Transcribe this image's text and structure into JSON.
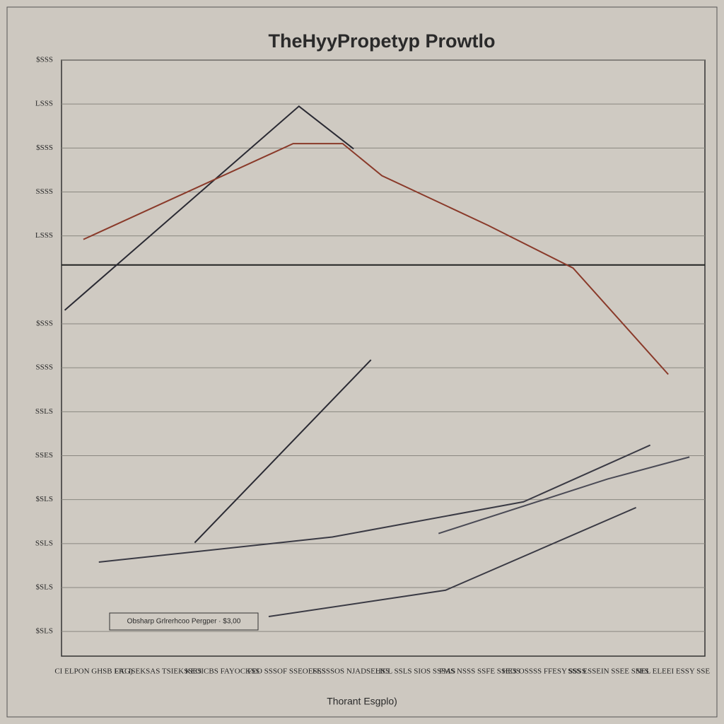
{
  "chart_data": {
    "type": "line",
    "title": "TheHyyPropetyp Prowtlo",
    "x_label": "Thorant Esgplo)",
    "legend_text": "Obsharp Grlrerhcoo Pergper · $3,00",
    "categories": [
      "CI ELPON GHSB LAG)",
      "FIC ISEKSAS TSIEKSSES",
      "KEOICBS FAYOCKSS",
      "FEO SSSOF SSEOESSS",
      "FESSSOS NJADSEHSS",
      "LICL SSLS SIOS SSSAS",
      "FMS NSSS SSFE SSEOS",
      "HES OSSSS FFESY SSSS",
      "SSS ESSEIN SSEE SSES",
      "NEL ELEEI ESSY SSE"
    ],
    "xlim": [
      0,
      10
    ],
    "ylim": [
      -0.56,
      13
    ],
    "yticks": [
      {
        "value": 0,
        "label": "$SLS"
      },
      {
        "value": 1,
        "label": "$SLS"
      },
      {
        "value": 2,
        "label": "SSLS"
      },
      {
        "value": 3,
        "label": "$SLS"
      },
      {
        "value": 4,
        "label": "SSES"
      },
      {
        "value": 5,
        "label": "SSLS"
      },
      {
        "value": 6,
        "label": "SSSS"
      },
      {
        "value": 7,
        "label": "$SSS"
      },
      {
        "value": 9,
        "label": "LSSS"
      },
      {
        "value": 10,
        "label": "SSSS"
      },
      {
        "value": 11,
        "label": "$SSS"
      },
      {
        "value": 12,
        "label": "LSSS"
      },
      {
        "value": 13,
        "label": "$SSS"
      }
    ],
    "reference_line": 8.34,
    "grid": true,
    "series": [
      {
        "color": "#2a2a33",
        "x": [
          0.05,
          3.69,
          4.54
        ],
        "values": [
          7.31,
          11.95,
          10.98
        ]
      },
      {
        "color": "#8a3a2a",
        "x": [
          0.34,
          3.6,
          4.37,
          4.98,
          6.63,
          7.95,
          9.43
        ],
        "values": [
          8.92,
          11.1,
          11.1,
          10.37,
          9.24,
          8.27,
          5.85
        ]
      },
      {
        "color": "#2a2a33",
        "x": [
          2.07,
          4.81
        ],
        "values": [
          2.02,
          6.18
        ]
      },
      {
        "color": "#3a3a44",
        "x": [
          0.58,
          4.21,
          7.18,
          9.15
        ],
        "values": [
          1.58,
          2.15,
          2.95,
          4.24
        ]
      },
      {
        "color": "#3a3a44",
        "x": [
          3.22,
          5.97,
          8.93
        ],
        "values": [
          0.34,
          0.94,
          2.82
        ]
      },
      {
        "color": "#4a4a55",
        "x": [
          5.86,
          8.49,
          9.76
        ],
        "values": [
          2.23,
          3.47,
          3.97
        ]
      }
    ]
  }
}
